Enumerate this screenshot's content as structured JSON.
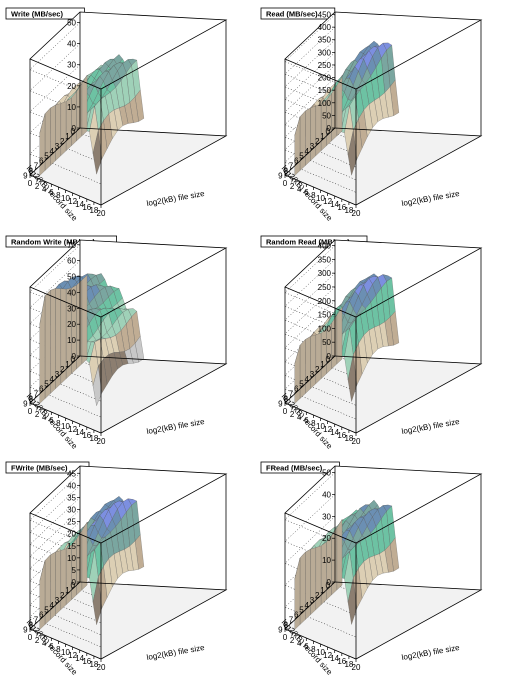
{
  "chart_data": [
    {
      "type": "surface3d",
      "title": "Write (MB/sec)",
      "xlabel": "log2(kB) file size",
      "ylabel": "log2(kB) record size",
      "x_ticks": [
        "0",
        "2",
        "4",
        "6",
        "8",
        "10",
        "12",
        "14",
        "16",
        "18",
        "20"
      ],
      "y_ticks": [
        "0",
        "1",
        "2",
        "3",
        "4",
        "5",
        "6",
        "7",
        "8",
        "9"
      ],
      "z_ticks": [
        "0",
        "10",
        "20",
        "30",
        "40",
        "50"
      ],
      "zlim": [
        0,
        55
      ],
      "grid": true,
      "surface": {
        "base": 20,
        "peak": 44,
        "peak_x": 14,
        "peak_y": 3,
        "spread": 7,
        "drop_x": 8
      }
    },
    {
      "type": "surface3d",
      "title": "Read (MB/sec)",
      "xlabel": "log2(kB) file size",
      "ylabel": "log2(kB) record size",
      "x_ticks": [
        "0",
        "2",
        "4",
        "6",
        "8",
        "10",
        "12",
        "14",
        "16",
        "18",
        "20"
      ],
      "y_ticks": [
        "0",
        "1",
        "2",
        "3",
        "4",
        "5",
        "6",
        "7",
        "8",
        "9"
      ],
      "z_ticks": [
        "0",
        "50",
        "100",
        "150",
        "200",
        "250",
        "300",
        "350",
        "400",
        "450"
      ],
      "zlim": [
        0,
        460
      ],
      "grid": true,
      "surface": {
        "base": 170,
        "peak": 430,
        "peak_x": 14,
        "peak_y": 2,
        "spread": 6,
        "drop_x": 8
      }
    },
    {
      "type": "surface3d",
      "title": "Random Write (MB/sec)",
      "xlabel": "log2(kB) file size",
      "ylabel": "log2(kB) record size",
      "x_ticks": [
        "0",
        "2",
        "4",
        "6",
        "8",
        "10",
        "12",
        "14",
        "16",
        "18",
        "20"
      ],
      "y_ticks": [
        "0",
        "1",
        "2",
        "3",
        "4",
        "5",
        "6",
        "7",
        "8",
        "9"
      ],
      "z_ticks": [
        "0",
        "10",
        "20",
        "30",
        "40",
        "50",
        "60",
        "70"
      ],
      "zlim": [
        0,
        73
      ],
      "grid": true,
      "surface": {
        "base": 28,
        "peak": 66,
        "peak_x": 6,
        "peak_y": 7,
        "spread": 8,
        "drop_x": 8
      }
    },
    {
      "type": "surface3d",
      "title": "Random Read (MB/sec)",
      "xlabel": "log2(kB) file size",
      "ylabel": "log2(kB) record size",
      "x_ticks": [
        "0",
        "2",
        "4",
        "6",
        "8",
        "10",
        "12",
        "14",
        "16",
        "18",
        "20"
      ],
      "y_ticks": [
        "0",
        "1",
        "2",
        "3",
        "4",
        "5",
        "6",
        "7",
        "8",
        "9"
      ],
      "z_ticks": [
        "0",
        "50",
        "100",
        "150",
        "200",
        "250",
        "300",
        "350",
        "400"
      ],
      "zlim": [
        0,
        420
      ],
      "grid": true,
      "surface": {
        "base": 150,
        "peak": 390,
        "peak_x": 14,
        "peak_y": 3,
        "spread": 6,
        "drop_x": 8
      }
    },
    {
      "type": "surface3d",
      "title": "FWrite (MB/sec)",
      "xlabel": "log2(kB) file size",
      "ylabel": "log2(kB) record size",
      "x_ticks": [
        "0",
        "2",
        "4",
        "6",
        "8",
        "10",
        "12",
        "14",
        "16",
        "18",
        "20"
      ],
      "y_ticks": [
        "0",
        "1",
        "2",
        "3",
        "4",
        "5",
        "6",
        "7",
        "8",
        "9"
      ],
      "z_ticks": [
        "0",
        "5",
        "10",
        "15",
        "20",
        "25",
        "30",
        "35",
        "40",
        "45"
      ],
      "zlim": [
        0,
        48
      ],
      "grid": true,
      "surface": {
        "base": 22,
        "peak": 45,
        "peak_x": 14,
        "peak_y": 3,
        "spread": 6,
        "drop_x": 8
      }
    },
    {
      "type": "surface3d",
      "title": "FRead (MB/sec)",
      "xlabel": "log2(kB) file size",
      "ylabel": "log2(kB) record size",
      "x_ticks": [
        "0",
        "2",
        "4",
        "6",
        "8",
        "10",
        "12",
        "14",
        "16",
        "18",
        "20"
      ],
      "y_ticks": [
        "0",
        "1",
        "2",
        "3",
        "4",
        "5",
        "6",
        "7",
        "8",
        "9"
      ],
      "z_ticks": [
        "0",
        "10",
        "20",
        "30",
        "40",
        "50"
      ],
      "zlim": [
        0,
        53
      ],
      "grid": true,
      "surface": {
        "base": 24,
        "peak": 46,
        "peak_x": 14,
        "peak_y": 3,
        "spread": 7,
        "drop_x": 8
      }
    }
  ],
  "colors": {
    "palette": [
      "#7a7a7a",
      "#3a3a3a",
      "#8f8f8f",
      "#c8c8c8",
      "#8c7e70",
      "#c0ad94",
      "#dccfb4",
      "#9fd1b8",
      "#6dc2a3",
      "#7aa6a0",
      "#6b8fb3",
      "#7c8fe0"
    ],
    "floor": "#d8d8d8",
    "frame": "#000000",
    "grid": "#000000"
  }
}
